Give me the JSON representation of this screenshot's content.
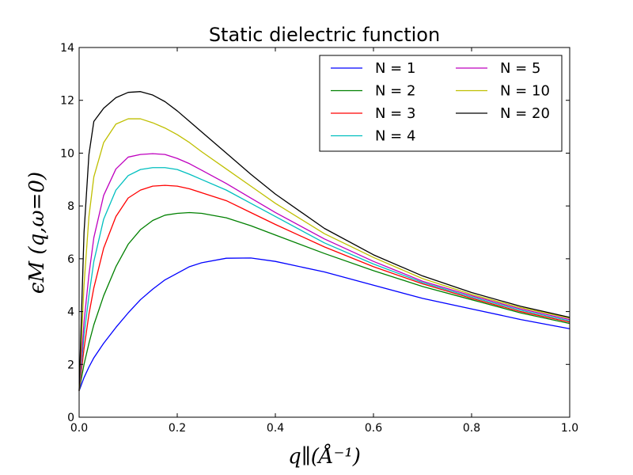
{
  "chart_data": {
    "type": "line",
    "title": "Static dielectric function",
    "xlabel": "q∥(Å⁻¹)",
    "ylabel": "ϵM (q,ω=0)",
    "xlim": [
      0.0,
      1.0
    ],
    "ylim": [
      0,
      14
    ],
    "xticks": [
      "0.0",
      "0.2",
      "0.4",
      "0.6",
      "0.8",
      "1.0"
    ],
    "yticks": [
      "0",
      "2",
      "4",
      "6",
      "8",
      "10",
      "12",
      "14"
    ],
    "grid": false,
    "legend": {
      "placement": "top-right",
      "columns": 2
    },
    "x": [
      0.0,
      0.01,
      0.02,
      0.03,
      0.05,
      0.075,
      0.1,
      0.125,
      0.15,
      0.175,
      0.2,
      0.225,
      0.25,
      0.3,
      0.35,
      0.4,
      0.5,
      0.6,
      0.7,
      0.8,
      0.9,
      1.0
    ],
    "series": [
      {
        "name": "N = 1",
        "color": "#0000ff",
        "values": [
          1.0,
          1.5,
          1.9,
          2.25,
          2.8,
          3.4,
          3.95,
          4.45,
          4.85,
          5.2,
          5.45,
          5.7,
          5.85,
          6.02,
          6.03,
          5.9,
          5.5,
          5.0,
          4.5,
          4.1,
          3.7,
          3.35
        ]
      },
      {
        "name": "N = 2",
        "color": "#008000",
        "values": [
          1.0,
          2.0,
          2.8,
          3.5,
          4.6,
          5.7,
          6.55,
          7.1,
          7.45,
          7.65,
          7.72,
          7.75,
          7.72,
          7.55,
          7.25,
          6.9,
          6.2,
          5.55,
          4.95,
          4.45,
          3.95,
          3.55
        ]
      },
      {
        "name": "N = 3",
        "color": "#ff0000",
        "values": [
          1.0,
          2.6,
          3.9,
          4.9,
          6.4,
          7.6,
          8.3,
          8.6,
          8.75,
          8.78,
          8.75,
          8.65,
          8.5,
          8.2,
          7.75,
          7.3,
          6.45,
          5.7,
          5.05,
          4.5,
          4.0,
          3.6
        ]
      },
      {
        "name": "N = 4",
        "color": "#00bfbf",
        "values": [
          1.0,
          3.1,
          4.6,
          5.9,
          7.5,
          8.6,
          9.15,
          9.38,
          9.45,
          9.45,
          9.38,
          9.2,
          9.0,
          8.6,
          8.1,
          7.6,
          6.6,
          5.8,
          5.1,
          4.55,
          4.05,
          3.65
        ]
      },
      {
        "name": "N = 5",
        "color": "#bf00bf",
        "values": [
          1.0,
          3.6,
          5.4,
          6.8,
          8.4,
          9.4,
          9.85,
          9.95,
          9.98,
          9.95,
          9.8,
          9.6,
          9.35,
          8.85,
          8.3,
          7.75,
          6.75,
          5.9,
          5.15,
          4.6,
          4.1,
          3.7
        ]
      },
      {
        "name": "N = 10",
        "color": "#bfbf00",
        "values": [
          1.0,
          5.0,
          7.6,
          9.1,
          10.4,
          11.1,
          11.3,
          11.3,
          11.15,
          10.95,
          10.7,
          10.4,
          10.05,
          9.4,
          8.75,
          8.1,
          6.95,
          6.05,
          5.25,
          4.65,
          4.15,
          3.75
        ]
      },
      {
        "name": "N = 20",
        "color": "#000000",
        "values": [
          1.0,
          7.0,
          9.95,
          11.2,
          11.7,
          12.1,
          12.3,
          12.33,
          12.2,
          11.95,
          11.6,
          11.2,
          10.8,
          10.0,
          9.2,
          8.45,
          7.15,
          6.15,
          5.35,
          4.72,
          4.2,
          3.78
        ]
      }
    ]
  }
}
